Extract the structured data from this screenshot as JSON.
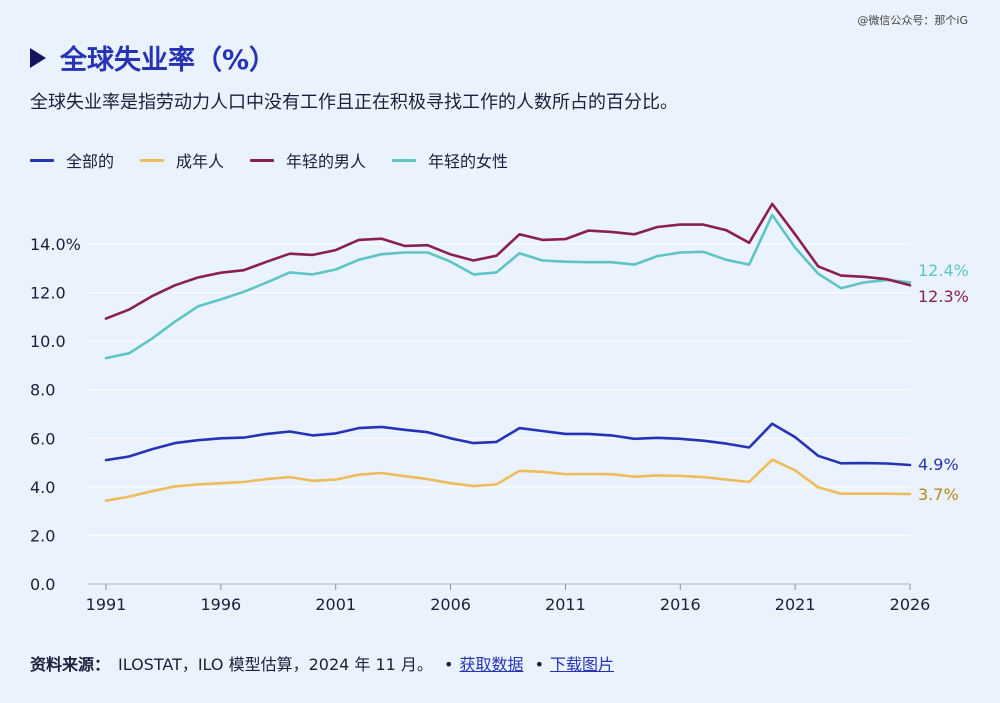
{
  "watermark": "@微信公众号：那个iG",
  "header": {
    "title": "全球失业率（%）",
    "subtitle": "全球失业率是指劳动力人口中没有工作且正在积极寻找工作的人数所占的百分比。"
  },
  "colors": {
    "total": "#2733b5",
    "adults": "#f0bb5c",
    "young_men": "#8a1f52",
    "young_women": "#5ec4c4",
    "adults_label": "#b8861f"
  },
  "footer": {
    "source_label": "资料来源：",
    "source_text": "ILOSTAT，ILO 模型估算，2024 年 11 月。",
    "sep1": "•",
    "link_data": "获取数据",
    "sep2": "•",
    "link_download": "下载图片"
  },
  "chart_data": {
    "type": "line",
    "title": "全球失业率（%）",
    "xlabel": "",
    "ylabel": "",
    "xlim": [
      1991,
      2026
    ],
    "ylim": [
      0,
      14
    ],
    "y_ticks": [
      0,
      2,
      4,
      6,
      8,
      10,
      12,
      14
    ],
    "y_tick_labels": [
      "0.0",
      "2.0",
      "4.0",
      "6.0",
      "8.0",
      "10.0",
      "12.0",
      "14.0%"
    ],
    "x_ticks": [
      1991,
      1996,
      2001,
      2006,
      2011,
      2016,
      2021,
      2026
    ],
    "x_tick_labels": [
      "1991",
      "1996",
      "2001",
      "2006",
      "2011",
      "2016",
      "2021",
      "2026"
    ],
    "legend_position": "top-left",
    "grid": "horizontal",
    "x": [
      1991,
      1992,
      1993,
      1994,
      1995,
      1996,
      1997,
      1998,
      1999,
      2000,
      2001,
      2002,
      2003,
      2004,
      2005,
      2006,
      2007,
      2008,
      2009,
      2010,
      2011,
      2012,
      2013,
      2014,
      2015,
      2016,
      2017,
      2018,
      2019,
      2020,
      2021,
      2022,
      2023,
      2024,
      2025,
      2026
    ],
    "series": [
      {
        "key": "total",
        "name": "全部的",
        "end_label": "4.9%",
        "values": [
          5.1,
          5.25,
          5.55,
          5.8,
          5.92,
          6.0,
          6.03,
          6.18,
          6.28,
          6.12,
          6.2,
          6.42,
          6.47,
          6.35,
          6.25,
          6.0,
          5.8,
          5.85,
          6.42,
          6.3,
          6.18,
          6.18,
          6.12,
          5.98,
          6.02,
          5.98,
          5.9,
          5.78,
          5.62,
          6.6,
          6.05,
          5.28,
          4.97,
          4.98,
          4.96,
          4.9
        ]
      },
      {
        "key": "adults",
        "name": "成年人",
        "end_label": "3.7%",
        "values": [
          3.43,
          3.6,
          3.82,
          4.02,
          4.1,
          4.15,
          4.2,
          4.32,
          4.4,
          4.25,
          4.3,
          4.5,
          4.57,
          4.44,
          4.32,
          4.15,
          4.03,
          4.1,
          4.66,
          4.62,
          4.52,
          4.53,
          4.52,
          4.42,
          4.47,
          4.45,
          4.4,
          4.3,
          4.2,
          5.12,
          4.68,
          3.98,
          3.72,
          3.72,
          3.72,
          3.7
        ]
      },
      {
        "key": "young_men",
        "name": "年轻的男人",
        "end_label": "12.3%",
        "values": [
          10.93,
          11.3,
          11.85,
          12.3,
          12.62,
          12.82,
          12.92,
          13.27,
          13.6,
          13.55,
          13.75,
          14.17,
          14.22,
          13.92,
          13.95,
          13.57,
          13.32,
          13.52,
          14.4,
          14.17,
          14.2,
          14.55,
          14.5,
          14.4,
          14.7,
          14.8,
          14.8,
          14.57,
          14.05,
          15.65,
          14.4,
          13.08,
          12.7,
          12.65,
          12.55,
          12.3
        ]
      },
      {
        "key": "young_women",
        "name": "年轻的女性",
        "end_label": "12.4%",
        "values": [
          9.3,
          9.5,
          10.1,
          10.8,
          11.43,
          11.72,
          12.03,
          12.42,
          12.83,
          12.75,
          12.95,
          13.35,
          13.58,
          13.65,
          13.65,
          13.27,
          12.75,
          12.83,
          13.62,
          13.32,
          13.27,
          13.25,
          13.25,
          13.15,
          13.5,
          13.65,
          13.68,
          13.35,
          13.15,
          15.2,
          13.85,
          12.78,
          12.18,
          12.42,
          12.52,
          12.42
        ]
      }
    ]
  }
}
